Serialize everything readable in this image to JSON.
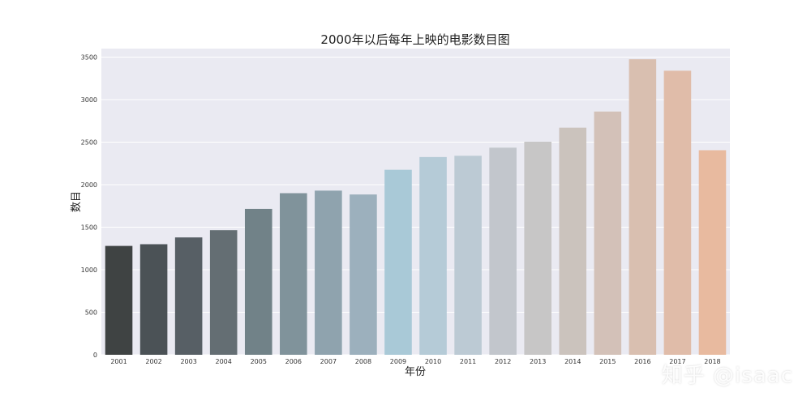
{
  "chart_data": {
    "type": "bar",
    "title": "2000年以后每年上映的电影数目图",
    "xlabel": "年份",
    "ylabel": "数目",
    "categories": [
      "2001",
      "2002",
      "2003",
      "2004",
      "2005",
      "2006",
      "2007",
      "2008",
      "2009",
      "2010",
      "2011",
      "2012",
      "2013",
      "2014",
      "2015",
      "2016",
      "2017",
      "2018"
    ],
    "values": [
      1280,
      1300,
      1380,
      1465,
      1715,
      1900,
      1930,
      1885,
      2175,
      2325,
      2340,
      2435,
      2505,
      2670,
      2860,
      3475,
      3340,
      2405
    ],
    "ylim": [
      0,
      3600
    ],
    "yticks": [
      0,
      500,
      1000,
      1500,
      2000,
      2500,
      3000,
      3500
    ],
    "grid": true,
    "background_color": "#eaeaf2",
    "bar_colors": [
      "#3f4343",
      "#4b5256",
      "#575f65",
      "#646e73",
      "#718288",
      "#80939b",
      "#8fa3ae",
      "#9cb0bd",
      "#a9c9d7",
      "#b5cbd7",
      "#bccad4",
      "#c2c6cc",
      "#c7c6c6",
      "#cbc3bd",
      "#d3c1b8",
      "#d9bfb0",
      "#e0bca9",
      "#e8ba9f"
    ]
  },
  "watermark": "知乎 @isaac"
}
